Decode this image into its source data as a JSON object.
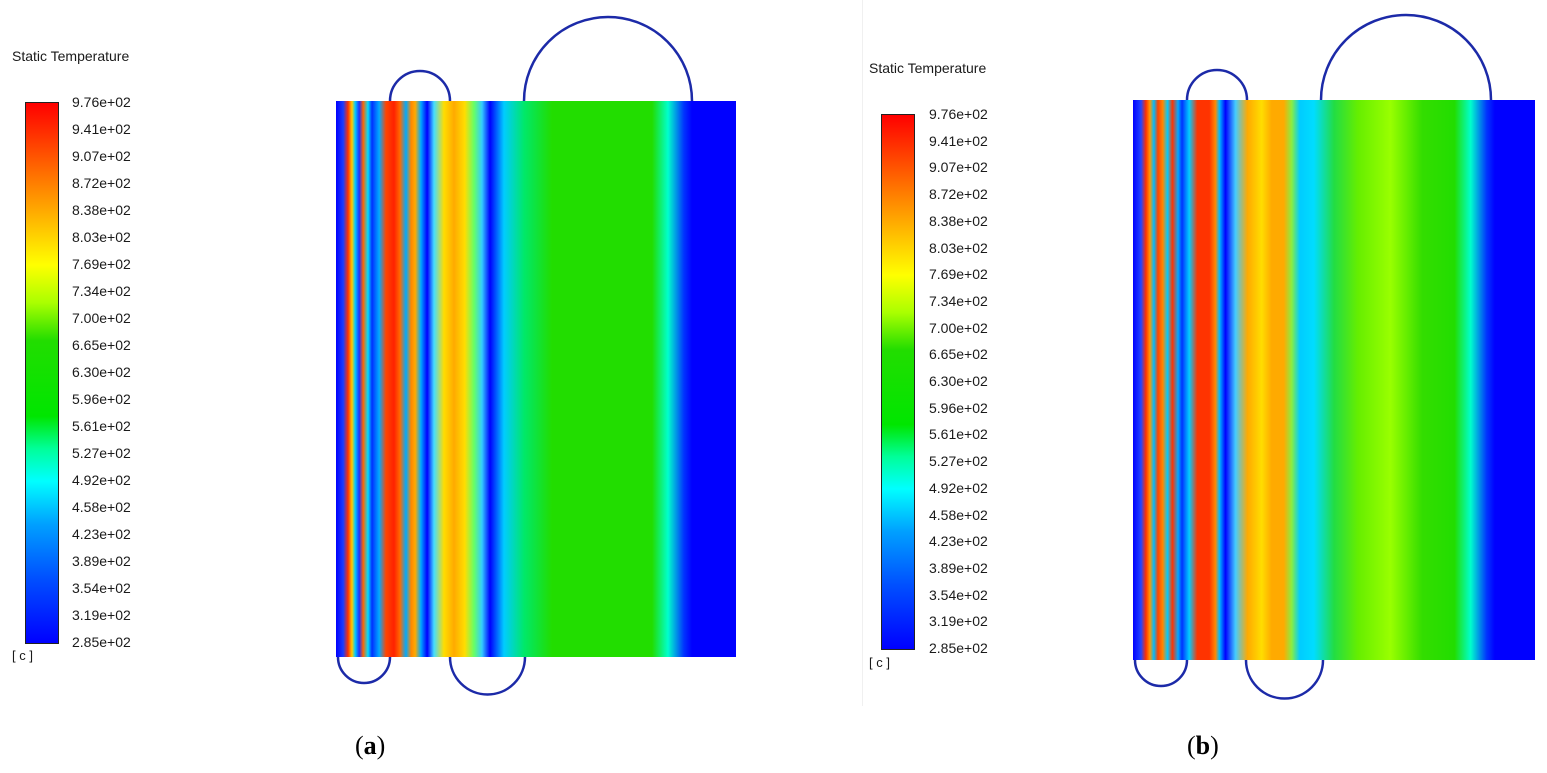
{
  "panels": [
    {
      "id": "a",
      "legend_title": "Static Temperature",
      "unit": "[ c ]",
      "ticks": [
        "9.76e+02",
        "9.41e+02",
        "9.07e+02",
        "8.72e+02",
        "8.38e+02",
        "8.03e+02",
        "7.69e+02",
        "7.34e+02",
        "7.00e+02",
        "6.65e+02",
        "6.30e+02",
        "5.96e+02",
        "5.61e+02",
        "5.27e+02",
        "4.92e+02",
        "4.58e+02",
        "4.23e+02",
        "3.89e+02",
        "3.54e+02",
        "3.19e+02",
        "2.85e+02"
      ],
      "caption_open": "(",
      "caption_letter": "a",
      "caption_close": ")"
    },
    {
      "id": "b",
      "legend_title": "Static Temperature",
      "unit": "[ c ]",
      "ticks": [
        "9.76e+02",
        "9.41e+02",
        "9.07e+02",
        "8.72e+02",
        "8.38e+02",
        "8.03e+02",
        "7.69e+02",
        "7.34e+02",
        "7.00e+02",
        "6.65e+02",
        "6.30e+02",
        "5.96e+02",
        "5.61e+02",
        "5.27e+02",
        "4.92e+02",
        "4.58e+02",
        "4.23e+02",
        "3.89e+02",
        "3.54e+02",
        "3.19e+02",
        "2.85e+02"
      ],
      "caption_open": "(",
      "caption_letter": "b",
      "caption_close": ")"
    }
  ],
  "colors": {
    "colormap": [
      "#0000ff",
      "#00a0ff",
      "#00ffff",
      "#00e600",
      "#aaff00",
      "#ffff00",
      "#ff9900",
      "#ff0000"
    ],
    "outline": "#1c2aa8"
  }
}
